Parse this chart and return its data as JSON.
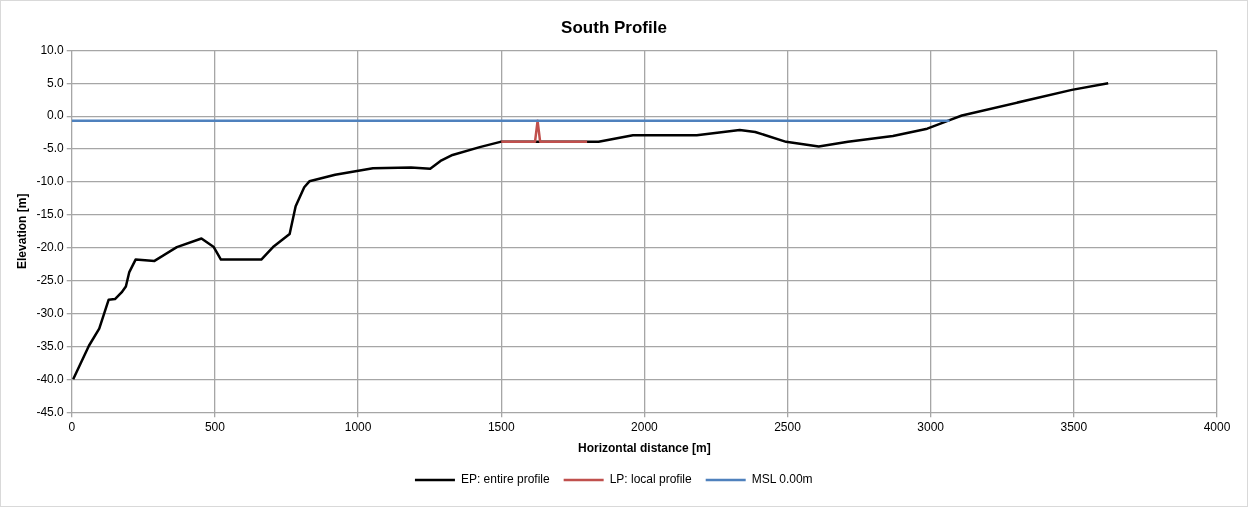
{
  "chart_data": {
    "type": "line",
    "title": "South Profile",
    "xlabel": "Horizontal distance [m]",
    "ylabel": "Elevation [m]",
    "xlim": [
      0,
      4000
    ],
    "xticks": [
      0,
      500,
      1000,
      1500,
      2000,
      2500,
      3000,
      3500,
      4000
    ],
    "ylim": [
      -45,
      10
    ],
    "yticks": [
      {
        "value": 10,
        "label": "10.0"
      },
      {
        "value": 5,
        "label": "5.0"
      },
      {
        "value": 0,
        "label": "0.0"
      },
      {
        "value": -5,
        "label": "-5.0"
      },
      {
        "value": -10,
        "label": "-10.0"
      },
      {
        "value": -15,
        "label": "-15.0"
      },
      {
        "value": -20,
        "label": "-20.0"
      },
      {
        "value": -25,
        "label": "-25.0"
      },
      {
        "value": -30,
        "label": "-30.0"
      },
      {
        "value": -35,
        "label": "-35.0"
      },
      {
        "value": -40,
        "label": "-40.0"
      },
      {
        "value": -45,
        "label": "-45.0"
      }
    ],
    "grid": true,
    "legend": "bottom",
    "marker": "none",
    "line_style": "solid",
    "series": [
      {
        "name": "EP: entire profile",
        "color": "#000000",
        "x": [
          5,
          60,
          96,
          129,
          151,
          174,
          189,
          201,
          223,
          289,
          367,
          453,
          496,
          521,
          662,
          703,
          761,
          782,
          812,
          830,
          920,
          1052,
          1185,
          1252,
          1288,
          1330,
          1425,
          1497,
          1800,
          1840,
          1960,
          2183,
          2333,
          2387,
          2495,
          2609,
          2711,
          2868,
          2988,
          3048,
          3066,
          3109,
          3493,
          3620
        ],
        "values": [
          -40,
          -34.9,
          -32.3,
          -27.9,
          -27.8,
          -26.8,
          -25.9,
          -23.7,
          -21.8,
          -22,
          -19.9,
          -18.6,
          -19.9,
          -21.8,
          -21.8,
          -19.9,
          -17.9,
          -13.7,
          -10.8,
          -9.9,
          -8.9,
          -7.9,
          -7.8,
          -8,
          -6.8,
          -5.9,
          -4.7,
          -3.9,
          -3.9,
          -3.9,
          -2.9,
          -2.9,
          -2.1,
          -2.4,
          -3.9,
          -4.6,
          -3.9,
          -3.0,
          -1.9,
          -0.9,
          -0.6,
          0.1,
          4.0,
          5.0
        ]
      },
      {
        "name": "LP: local profile",
        "color": "#c0504d",
        "x": [
          1500,
          1618,
          1627,
          1636,
          1800
        ],
        "values": [
          -3.9,
          -3.9,
          -0.7,
          -3.9,
          -3.9
        ]
      },
      {
        "name": "MSL 0.00m",
        "color": "#4f81bd",
        "x": [
          0,
          3066
        ],
        "values": [
          -0.7,
          -0.7
        ]
      }
    ]
  }
}
